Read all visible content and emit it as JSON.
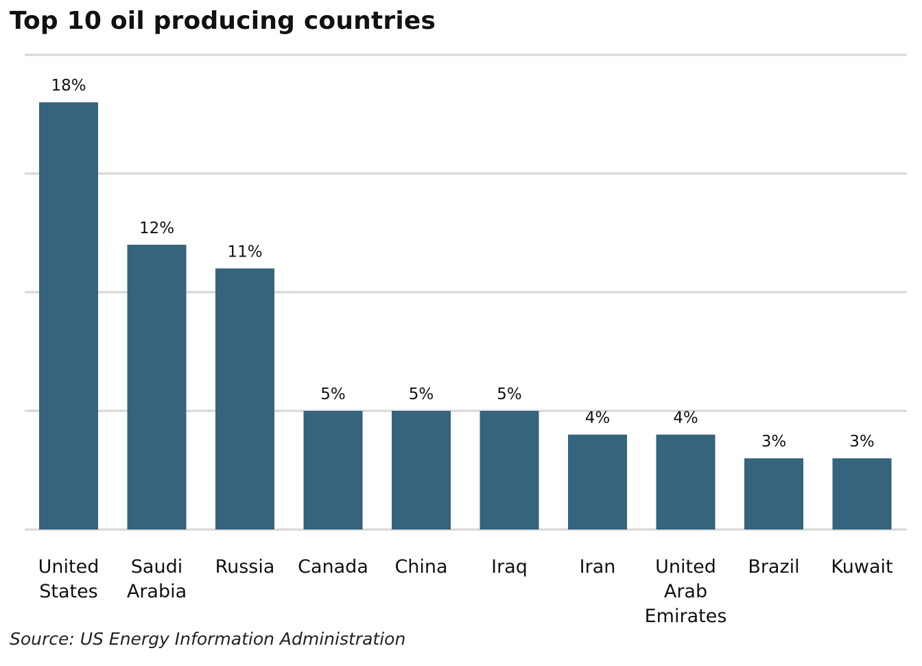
{
  "title": "Top 10 oil producing countries",
  "source": "Source: US Energy Information Administration",
  "colors": {
    "bar": "#35647C",
    "grid": "#D6D6D6",
    "text": "#111111"
  },
  "chart_data": {
    "type": "bar",
    "title": "Top 10 oil producing countries",
    "xlabel": "",
    "ylabel": "",
    "categories": [
      [
        "United",
        "States"
      ],
      [
        "Saudi",
        "Arabia"
      ],
      [
        "Russia"
      ],
      [
        "Canada"
      ],
      [
        "China"
      ],
      [
        "Iraq"
      ],
      [
        "Iran"
      ],
      [
        "United",
        "Arab",
        "Emirates"
      ],
      [
        "Brazil"
      ],
      [
        "Kuwait"
      ]
    ],
    "values": [
      18,
      12,
      11,
      5,
      5,
      5,
      4,
      4,
      3,
      3
    ],
    "value_labels": [
      "18%",
      "12%",
      "11%",
      "5%",
      "5%",
      "5%",
      "4%",
      "4%",
      "3%",
      "3%"
    ],
    "ylim": [
      0,
      20
    ],
    "gridlines": [
      5,
      10,
      15,
      20
    ],
    "grid": true,
    "legend": "none"
  }
}
